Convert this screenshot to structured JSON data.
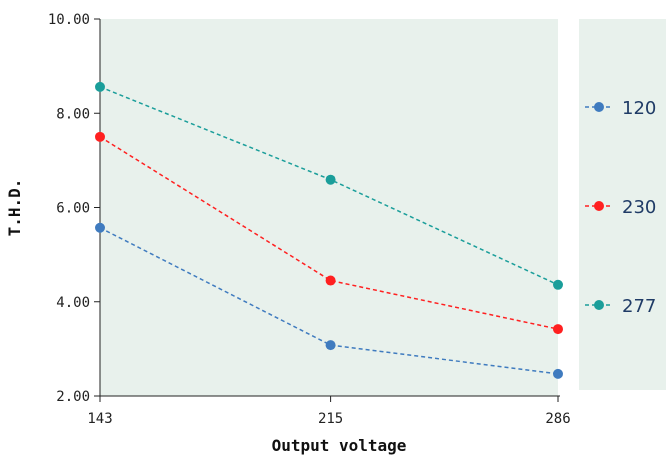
{
  "chart_data": {
    "type": "line",
    "title": "",
    "xlabel": "Output voltage",
    "ylabel": "T.H.D.",
    "x": [
      143,
      215,
      286
    ],
    "x_tick_labels": [
      "143",
      "215",
      "286"
    ],
    "y_tick_labels": [
      "2.00",
      "4.00",
      "6.00",
      "8.00",
      "10.00"
    ],
    "ylim": [
      2,
      10
    ],
    "grid": false,
    "legend_position": "right",
    "plot_background": "#e8f1ec",
    "series": [
      {
        "name": "120",
        "values": [
          5.57,
          3.08,
          2.47
        ],
        "color": "#3f7bbf"
      },
      {
        "name": "230",
        "values": [
          7.5,
          4.45,
          3.42
        ],
        "color": "#ff2020"
      },
      {
        "name": "277",
        "values": [
          8.56,
          6.59,
          4.36
        ],
        "color": "#1a9e9a"
      }
    ]
  }
}
